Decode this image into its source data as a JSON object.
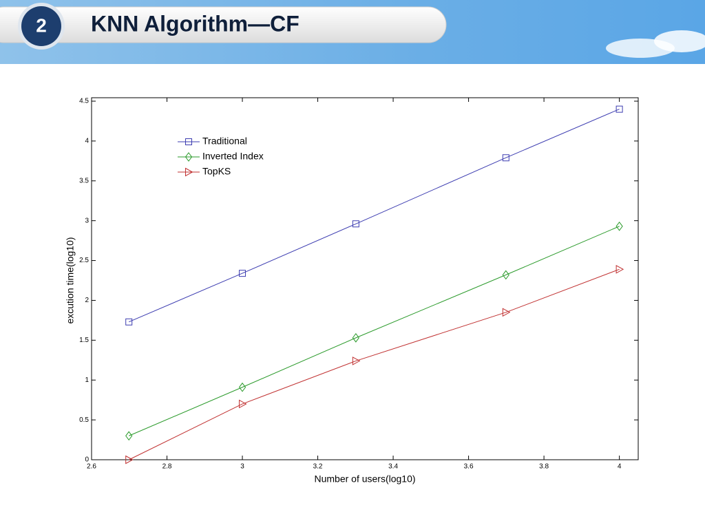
{
  "slide": {
    "number": "2",
    "title": "KNN Algorithm—CF"
  },
  "chart_data": {
    "type": "line",
    "x_label": "Number of users(log10)",
    "y_label": "excution time(log10)",
    "x": [
      2.699,
      3,
      3.301,
      3.699,
      4
    ],
    "series": [
      {
        "name": "Traditional",
        "color": "#3b3bb0",
        "marker": "square",
        "values": [
          1.73,
          2.34,
          2.96,
          3.79,
          4.4
        ]
      },
      {
        "name": "Inverted Index",
        "color": "#2a9a2a",
        "marker": "diamond",
        "values": [
          0.3,
          0.91,
          1.53,
          2.32,
          2.93
        ]
      },
      {
        "name": "TopKS",
        "color": "#c03030",
        "marker": "triangle-right",
        "values": [
          0.0,
          0.7,
          1.24,
          1.85,
          2.39
        ]
      }
    ],
    "xlim": [
      2.6,
      4.05
    ],
    "xticks": [
      2.6,
      2.8,
      3,
      3.2,
      3.4,
      3.6,
      3.8,
      4
    ],
    "ylim": [
      0,
      4.5
    ],
    "yticks": [
      0,
      0.5,
      1,
      1.5,
      2,
      2.5,
      3,
      3.5,
      4,
      4.5
    ],
    "grid": false,
    "legend": "upper-left"
  }
}
